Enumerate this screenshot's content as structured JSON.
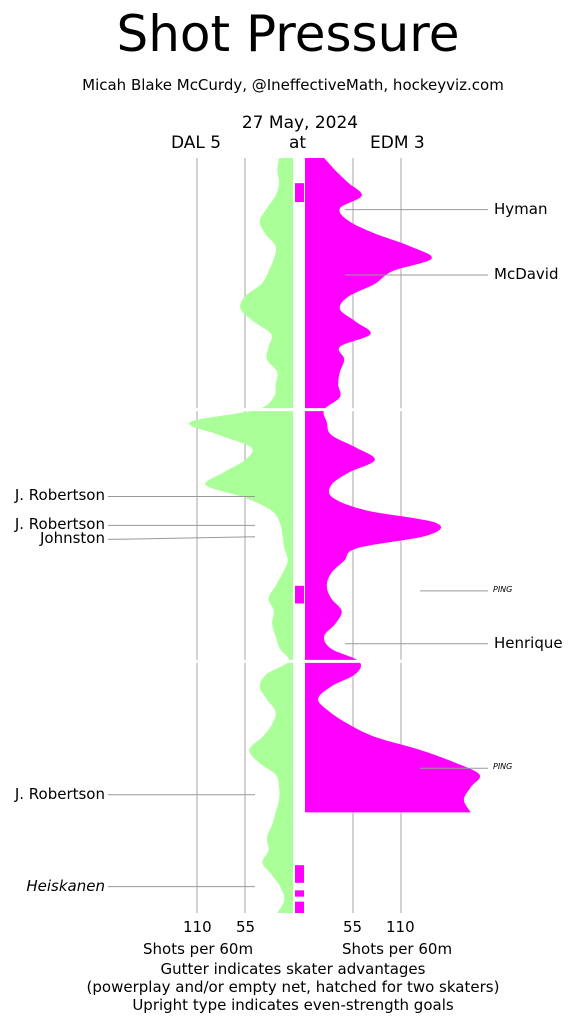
{
  "title": "Shot Pressure",
  "byline": "Micah Blake McCurdy, @IneffectiveMath, hockeyviz.com",
  "date": "27 May, 2024",
  "teams": {
    "away": "DAL 5",
    "at": "at",
    "home": "EDM 3",
    "away_color": "#aaff99",
    "home_color": "#ff00ff"
  },
  "axis": {
    "ticks_left": [
      "110",
      "55"
    ],
    "ticks_right": [
      "55",
      "110"
    ],
    "label_left": "Shots per 60m",
    "label_right": "Shots per 60m"
  },
  "footer": {
    "line1": "Gutter indicates skater advantages",
    "line2": "(powerplay and/or empty net, hatched for two skaters)",
    "line3": "Upright type indicates even-strength goals"
  },
  "chart_data": {
    "type": "area",
    "orientation": "vertical-time",
    "periods": 3,
    "time_range_min": [
      0,
      60
    ],
    "x_scale_shots_per_60": [
      0,
      110
    ],
    "series": [
      {
        "name": "DAL 5",
        "side": "left",
        "color": "#aaff99",
        "samples": [
          [
            0,
            16
          ],
          [
            1,
            18
          ],
          [
            2,
            16
          ],
          [
            3,
            20
          ],
          [
            4,
            30
          ],
          [
            5,
            38
          ],
          [
            6,
            32
          ],
          [
            7,
            20
          ],
          [
            8,
            22
          ],
          [
            9,
            28
          ],
          [
            10,
            36
          ],
          [
            11,
            55
          ],
          [
            12,
            60
          ],
          [
            13,
            45
          ],
          [
            14,
            25
          ],
          [
            15,
            28
          ],
          [
            16,
            30
          ],
          [
            17,
            18
          ],
          [
            18,
            20
          ],
          [
            19,
            22
          ],
          [
            20,
            42
          ],
          [
            21,
            118
          ],
          [
            22,
            85
          ],
          [
            23,
            48
          ],
          [
            24,
            55
          ],
          [
            25,
            80
          ],
          [
            26,
            100
          ],
          [
            27,
            55
          ],
          [
            28,
            25
          ],
          [
            29,
            15
          ],
          [
            30,
            12
          ],
          [
            31,
            10
          ],
          [
            32,
            6
          ],
          [
            33,
            12
          ],
          [
            34,
            20
          ],
          [
            35,
            28
          ],
          [
            36,
            22
          ],
          [
            37,
            24
          ],
          [
            38,
            20
          ],
          [
            39,
            15
          ],
          [
            40,
            5
          ],
          [
            41,
            30
          ],
          [
            42,
            38
          ],
          [
            43,
            30
          ],
          [
            44,
            20
          ],
          [
            45,
            24
          ],
          [
            46,
            35
          ],
          [
            47,
            50
          ],
          [
            48,
            40
          ],
          [
            49,
            20
          ],
          [
            50,
            16
          ],
          [
            51,
            16
          ],
          [
            52,
            20
          ],
          [
            53,
            24
          ],
          [
            54,
            30
          ],
          [
            55,
            28
          ],
          [
            56,
            35
          ],
          [
            57,
            24
          ],
          [
            58,
            14
          ],
          [
            59,
            10
          ],
          [
            60,
            18
          ]
        ]
      },
      {
        "name": "EDM 3",
        "side": "right",
        "color": "#ff00ff",
        "samples": [
          [
            0,
            22
          ],
          [
            1,
            35
          ],
          [
            2,
            50
          ],
          [
            3,
            65
          ],
          [
            4,
            40
          ],
          [
            5,
            50
          ],
          [
            6,
            80
          ],
          [
            7,
            120
          ],
          [
            8,
            145
          ],
          [
            9,
            100
          ],
          [
            10,
            80
          ],
          [
            11,
            50
          ],
          [
            12,
            40
          ],
          [
            13,
            58
          ],
          [
            14,
            75
          ],
          [
            15,
            40
          ],
          [
            16,
            45
          ],
          [
            17,
            40
          ],
          [
            18,
            38
          ],
          [
            19,
            40
          ],
          [
            20,
            22
          ],
          [
            21,
            25
          ],
          [
            22,
            30
          ],
          [
            23,
            58
          ],
          [
            24,
            80
          ],
          [
            25,
            50
          ],
          [
            26,
            30
          ],
          [
            27,
            32
          ],
          [
            28,
            70
          ],
          [
            29,
            150
          ],
          [
            30,
            140
          ],
          [
            31,
            60
          ],
          [
            32,
            45
          ],
          [
            33,
            30
          ],
          [
            34,
            25
          ],
          [
            35,
            30
          ],
          [
            36,
            42
          ],
          [
            37,
            35
          ],
          [
            38,
            22
          ],
          [
            39,
            30
          ],
          [
            40,
            62
          ],
          [
            41,
            58
          ],
          [
            42,
            30
          ],
          [
            43,
            15
          ],
          [
            44,
            28
          ],
          [
            45,
            50
          ],
          [
            46,
            80
          ],
          [
            47,
            130
          ],
          [
            48,
            170
          ],
          [
            49,
            200
          ],
          [
            50,
            190
          ],
          [
            51,
            182
          ],
          [
            52,
            190
          ]
        ]
      }
    ],
    "goals": [
      {
        "team": "EDM",
        "name": "Hyman",
        "time": 4.1,
        "even_strength": true
      },
      {
        "team": "EDM",
        "name": "McDavid",
        "time": 9.3,
        "even_strength": true
      },
      {
        "team": "DAL",
        "name": "J. Robertson",
        "time": 26.9,
        "even_strength": true
      },
      {
        "team": "DAL",
        "name": "J. Robertson",
        "time": 29.2,
        "even_strength": true
      },
      {
        "team": "DAL",
        "name": "Johnston",
        "time": 30.1,
        "even_strength": true
      },
      {
        "team": "EDM",
        "name": "PING",
        "time": 34.4,
        "even_strength": false
      },
      {
        "team": "EDM",
        "name": "Henrique",
        "time": 38.6,
        "even_strength": true
      },
      {
        "team": "EDM",
        "name": "PING",
        "time": 48.5,
        "even_strength": false
      },
      {
        "team": "DAL",
        "name": "J. Robertson",
        "time": 50.6,
        "even_strength": true
      },
      {
        "team": "DAL",
        "name": "Heiskanen",
        "time": 57.9,
        "even_strength": false
      }
    ],
    "advantages": [
      {
        "team": "EDM",
        "start": 2.0,
        "end": 3.5
      },
      {
        "team": "EDM",
        "start": 34.0,
        "end": 35.4
      },
      {
        "team": "EDM",
        "start": 56.2,
        "end": 57.6
      },
      {
        "team": "EDM",
        "start": 58.2,
        "end": 58.7
      },
      {
        "team": "EDM",
        "start": 59.1,
        "end": 60.0
      }
    ]
  }
}
